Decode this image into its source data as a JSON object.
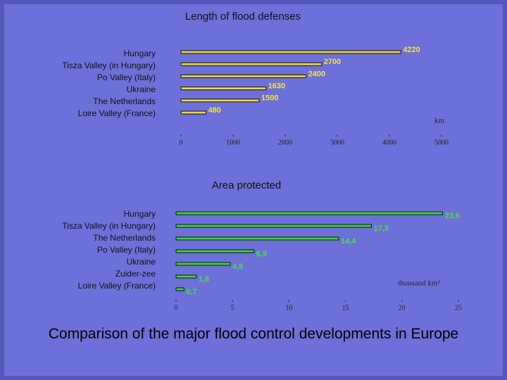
{
  "chart_data": [
    {
      "type": "bar",
      "orientation": "horizontal",
      "title": "Length of flood defenses",
      "categories": [
        "Hungary",
        "Tisza Valley (in Hungary)",
        "Po Valley (Italy)",
        "Ukraine",
        "The Netherlands",
        "Loire Valley (France)"
      ],
      "values": [
        4220,
        2700,
        2400,
        1630,
        1500,
        480
      ],
      "color": "#e6d648",
      "label_color": "#f2e24a",
      "x_label": "km",
      "xlim": [
        0,
        5000
      ],
      "xticks": [
        0,
        1000,
        2000,
        3000,
        4000,
        5000
      ]
    },
    {
      "type": "bar",
      "orientation": "horizontal",
      "title": "Area protected",
      "categories": [
        "Hungary",
        "Tisza Valley (in Hungary)",
        "The Netherlands",
        "Po Valley (Italy)",
        "Ukraine",
        "Zuider-zee",
        "Loire Valley (France)"
      ],
      "values": [
        23.6,
        17.3,
        14.4,
        6.9,
        4.8,
        1.8,
        0.7
      ],
      "value_labels": [
        "23,6",
        "17,3",
        "14,4",
        "6,9",
        "4,8",
        "1,8",
        "0,7"
      ],
      "color": "#3cd83c",
      "label_color": "#44e044",
      "x_label": "thousand km²",
      "xlim": [
        0,
        25
      ],
      "xticks": [
        0,
        5,
        10,
        15,
        20,
        25
      ]
    }
  ],
  "caption": "Comparison of the major flood control developments in Europe"
}
